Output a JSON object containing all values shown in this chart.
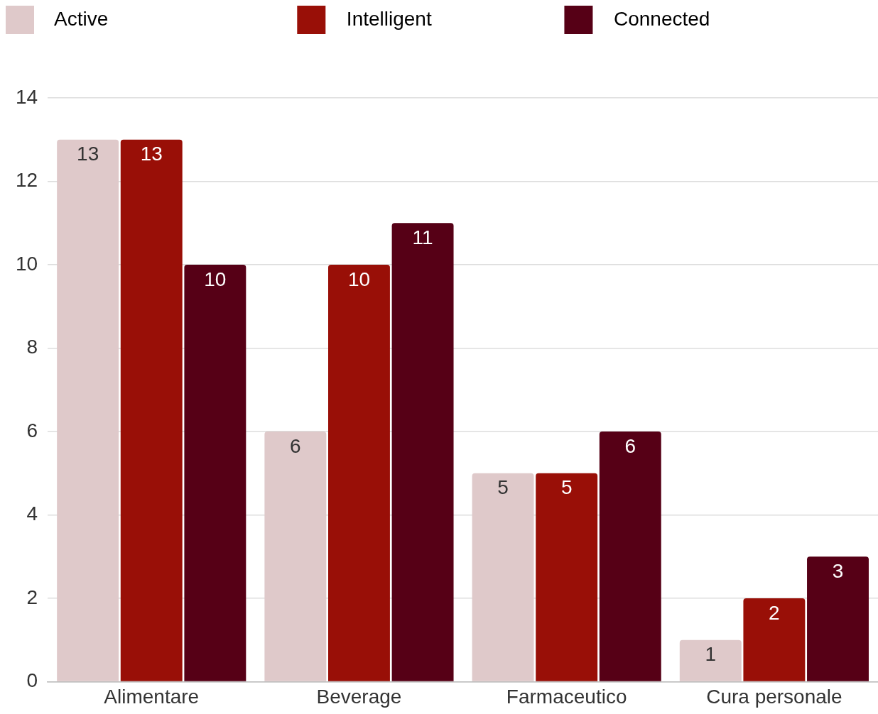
{
  "chart_data": {
    "type": "bar",
    "categories": [
      "Alimentare",
      "Beverage",
      "Farmaceutico",
      "Cura personale"
    ],
    "series": [
      {
        "name": "Active",
        "color": "#dfc9ca",
        "values": [
          13,
          6,
          5,
          1
        ]
      },
      {
        "name": "Intelligent",
        "color": "#990f07",
        "values": [
          13,
          10,
          5,
          2
        ]
      },
      {
        "name": "Connected",
        "color": "#560016",
        "values": [
          10,
          11,
          6,
          3
        ]
      }
    ],
    "ylim": [
      0,
      14
    ],
    "yticks": [
      0,
      2,
      4,
      6,
      8,
      10,
      12,
      14
    ],
    "grid": "y",
    "legend": "top",
    "data_labels": true
  }
}
